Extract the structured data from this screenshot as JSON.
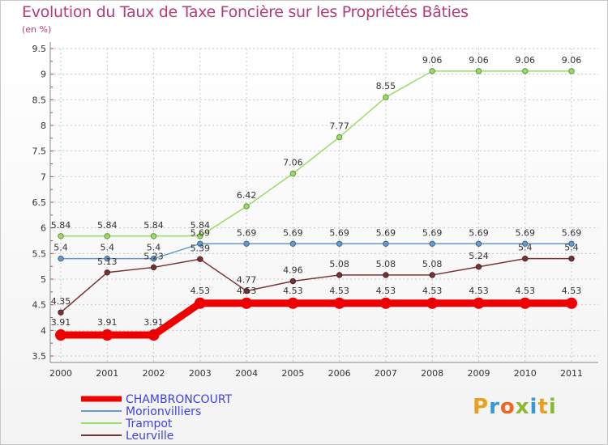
{
  "chart_data": {
    "type": "line",
    "title": "Evolution du Taux de Taxe Foncière sur les Propriétés Bâties",
    "subtitle": "(en %)",
    "x": [
      "2000",
      "2001",
      "2002",
      "2003",
      "2004",
      "2005",
      "2006",
      "2007",
      "2008",
      "2009",
      "2010",
      "2011"
    ],
    "ylim": [
      3.5,
      9.5
    ],
    "yticks": [
      "3.5",
      "4",
      "4.5",
      "5",
      "5.5",
      "6",
      "6.5",
      "7",
      "7.5",
      "8",
      "8.5",
      "9",
      "9.5"
    ],
    "grid": true,
    "legend_position": "bottom-left",
    "series": [
      {
        "name": "CHAMBRONCOURT",
        "color": "#ee0000",
        "thick": true,
        "values": [
          3.91,
          3.91,
          3.91,
          4.53,
          4.53,
          4.53,
          4.53,
          4.53,
          4.53,
          4.53,
          4.53,
          4.53
        ],
        "labels": [
          "3.91",
          "3.91",
          "3.91",
          "4.53",
          "4.53",
          "4.53",
          "4.53",
          "4.53",
          "4.53",
          "4.53",
          "4.53",
          "4.53"
        ]
      },
      {
        "name": "Morionvilliers",
        "color": "#6699cc",
        "thick": false,
        "values": [
          5.4,
          5.4,
          5.4,
          5.69,
          5.69,
          5.69,
          5.69,
          5.69,
          5.69,
          5.69,
          5.69,
          5.69
        ],
        "labels": [
          "5.4",
          "5.4",
          "5.4",
          "5.69",
          "5.69",
          "5.69",
          "5.69",
          "5.69",
          "5.69",
          "5.69",
          "5.69",
          "5.69"
        ]
      },
      {
        "name": "Trampot",
        "color": "#99dd66",
        "thick": false,
        "values": [
          5.84,
          5.84,
          5.84,
          5.84,
          6.42,
          7.06,
          7.77,
          8.55,
          9.06,
          9.06,
          9.06,
          9.06
        ],
        "labels": [
          "5.84",
          "5.84",
          "5.84",
          "5.84",
          "6.42",
          "7.06",
          "7.77",
          "8.55",
          "9.06",
          "9.06",
          "9.06",
          "9.06"
        ]
      },
      {
        "name": "Leurville",
        "color": "#773333",
        "thick": false,
        "values": [
          4.35,
          5.13,
          5.23,
          5.39,
          4.77,
          4.96,
          5.08,
          5.08,
          5.08,
          5.24,
          5.4,
          5.4
        ],
        "labels": [
          "4.35",
          "5.13",
          "5.23",
          "5.39",
          "4.77",
          "4.96",
          "5.08",
          "5.08",
          "5.08",
          "5.24",
          "5.4",
          "5.4"
        ]
      }
    ]
  },
  "logo": {
    "text": "Proxiti"
  }
}
